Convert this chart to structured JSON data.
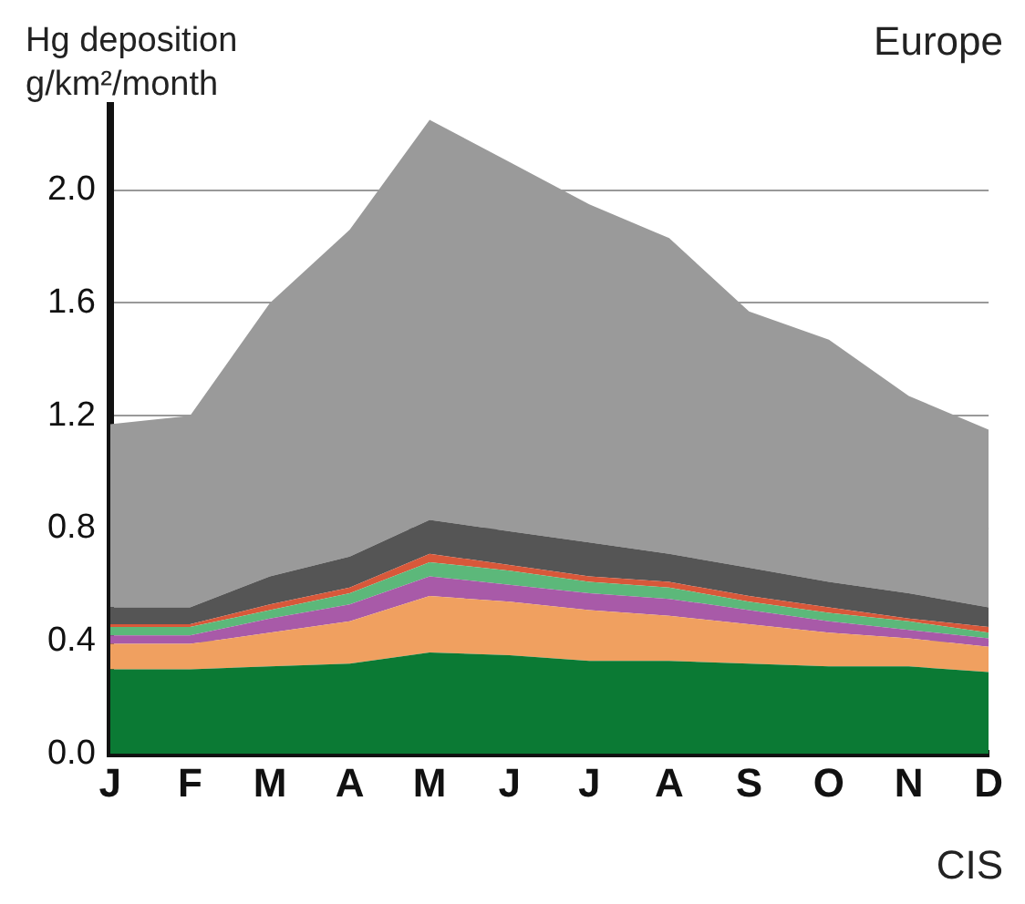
{
  "chart_data": {
    "type": "area",
    "ylabel": "Hg deposition g/km²/month",
    "annotations": [
      "Europe",
      "CIS"
    ],
    "stacked": true,
    "categories": [
      "J",
      "F",
      "M",
      "A",
      "M",
      "J",
      "J",
      "A",
      "S",
      "O",
      "N",
      "D"
    ],
    "series": [
      {
        "color": "#0b7a34",
        "values": [
          0.3,
          0.3,
          0.31,
          0.32,
          0.36,
          0.35,
          0.33,
          0.33,
          0.32,
          0.31,
          0.31,
          0.29
        ]
      },
      {
        "color": "#f0a060",
        "values": [
          0.09,
          0.09,
          0.12,
          0.15,
          0.2,
          0.19,
          0.18,
          0.16,
          0.14,
          0.12,
          0.1,
          0.09
        ]
      },
      {
        "color": "#a85aa8",
        "values": [
          0.03,
          0.03,
          0.05,
          0.06,
          0.07,
          0.06,
          0.06,
          0.06,
          0.05,
          0.04,
          0.03,
          0.03
        ]
      },
      {
        "color": "#5cb87a",
        "values": [
          0.03,
          0.03,
          0.03,
          0.04,
          0.05,
          0.05,
          0.04,
          0.04,
          0.03,
          0.03,
          0.03,
          0.02
        ]
      },
      {
        "color": "#d8583a",
        "values": [
          0.01,
          0.01,
          0.02,
          0.02,
          0.03,
          0.02,
          0.02,
          0.02,
          0.02,
          0.02,
          0.01,
          0.02
        ]
      },
      {
        "color": "#555555",
        "values": [
          0.06,
          0.06,
          0.1,
          0.11,
          0.12,
          0.12,
          0.12,
          0.1,
          0.1,
          0.09,
          0.09,
          0.07
        ]
      },
      {
        "color": "#9a9a9a",
        "values": [
          0.65,
          0.68,
          0.97,
          1.16,
          1.42,
          1.31,
          1.2,
          1.12,
          0.91,
          0.86,
          0.7,
          0.63
        ]
      }
    ],
    "ylim": [
      0,
      2.3
    ],
    "yticks": [
      {
        "value": 0,
        "label": "0.0"
      },
      0.4,
      0.8,
      1.2,
      1.6,
      {
        "value": 2,
        "label": "2.0"
      }
    ],
    "grid": "y",
    "legend": false
  }
}
